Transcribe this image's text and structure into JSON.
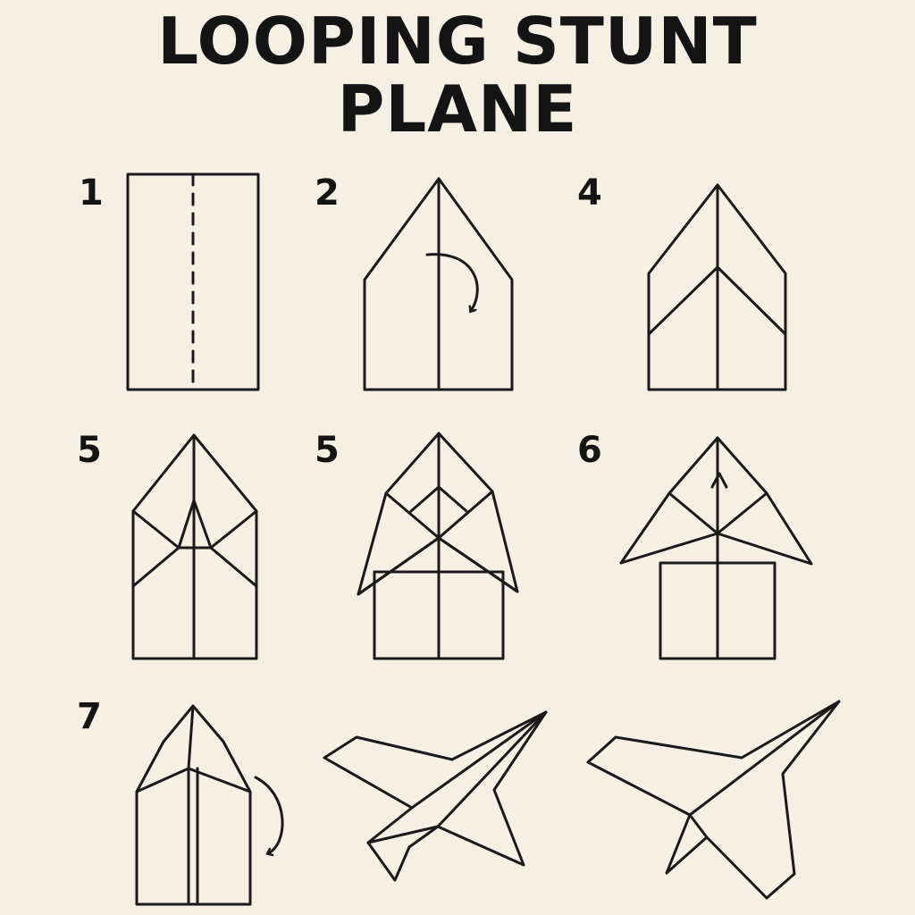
{
  "title": {
    "line1": "LOOPING STUNT",
    "line2": "PLANE"
  },
  "steps": [
    {
      "number": "1"
    },
    {
      "number": "2"
    },
    {
      "number": "4"
    },
    {
      "number": "5"
    },
    {
      "number": "5"
    },
    {
      "number": "6"
    },
    {
      "number": "7"
    }
  ],
  "colors": {
    "background": "#f6efe3",
    "ink": "#1a1a1a"
  },
  "icons": [
    "fold-arrow-icon"
  ]
}
